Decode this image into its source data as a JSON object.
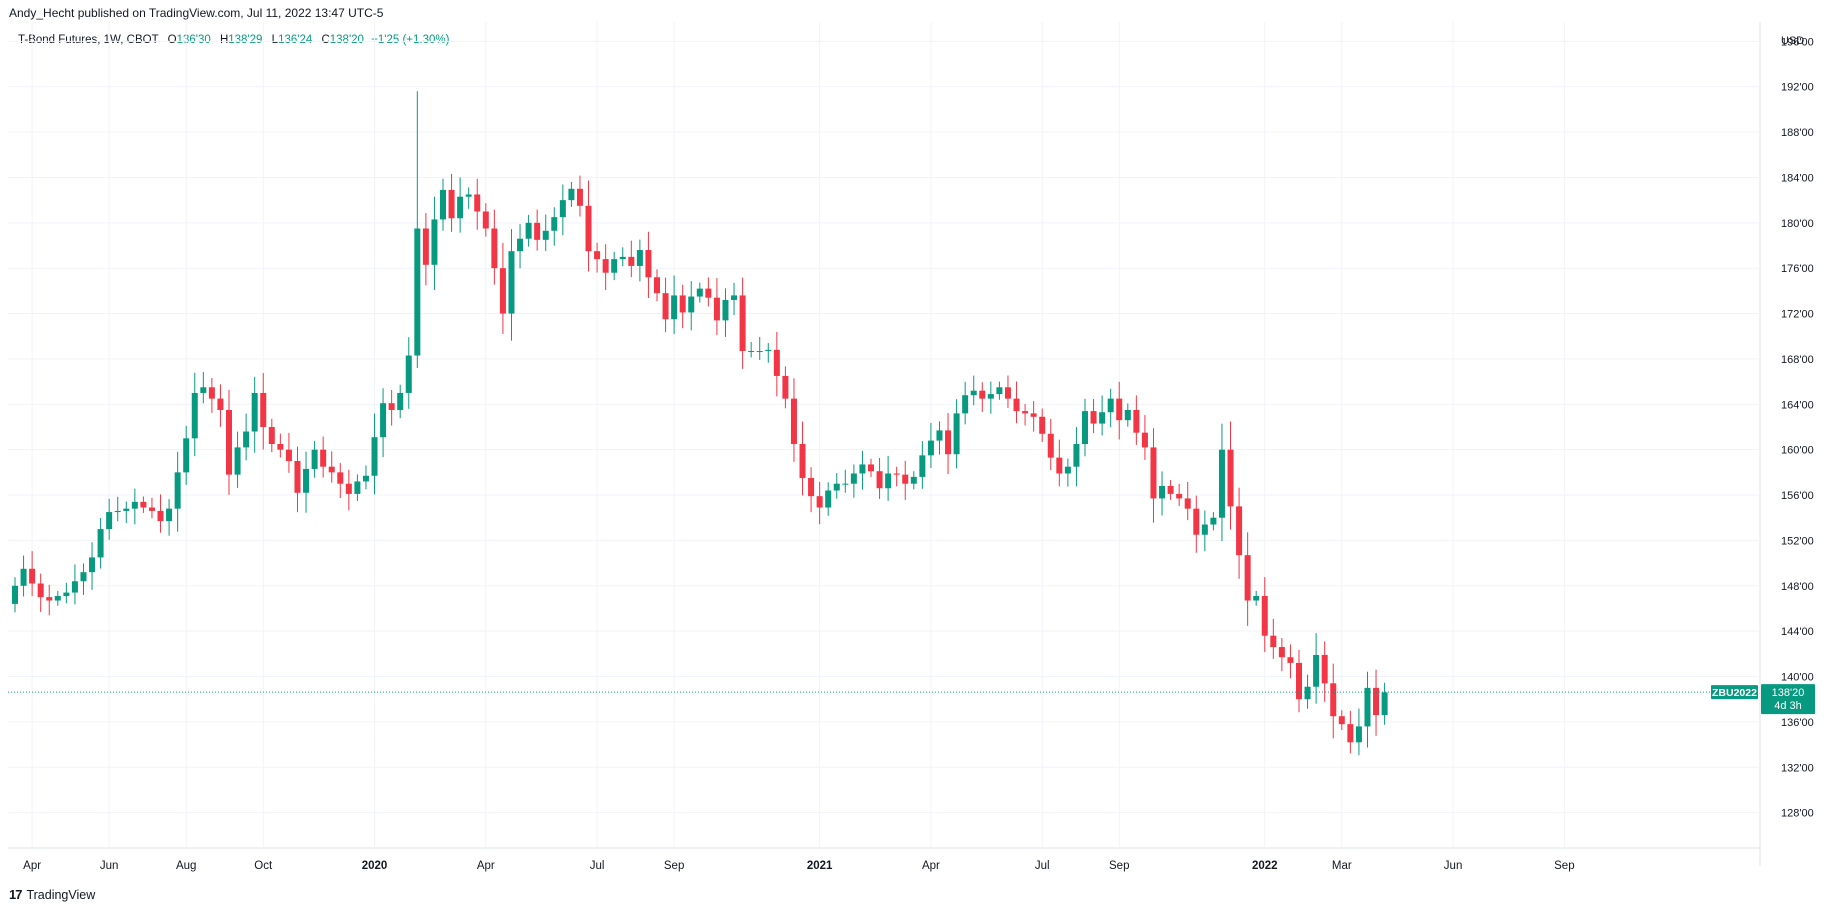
{
  "attribution": "Andy_Hecht published on TradingView.com, Jul 11, 2022 13:47 UTC-5",
  "legend": {
    "symbol": "T-Bond Futures, 1W, CBOT",
    "o_label": "O",
    "o_value": "136'30",
    "h_label": "H",
    "h_value": "138'29",
    "l_label": "L",
    "l_value": "136'24",
    "c_label": "C",
    "c_value": "138'20",
    "change": "+1'25 (+1.30%)"
  },
  "price_axis_currency": "USD",
  "last_price_tag": {
    "ticker": "ZBU2022",
    "price": "138'20",
    "countdown": "4d 3h"
  },
  "footer": {
    "logo_mark": "17",
    "logo_text": "TradingView"
  },
  "colors": {
    "up": "#089981",
    "down": "#f23645",
    "grid": "#f0f3fa",
    "axis_text": "#131722",
    "tag": "#089981"
  },
  "chart_data": {
    "type": "candlestick",
    "title": "T-Bond Futures, 1W, CBOT",
    "ylim": [
      124,
      197
    ],
    "y_ticks": [
      {
        "value": 196,
        "label": "196'00"
      },
      {
        "value": 192,
        "label": "192'00"
      },
      {
        "value": 188,
        "label": "188'00"
      },
      {
        "value": 184,
        "label": "184'00"
      },
      {
        "value": 180,
        "label": "180'00"
      },
      {
        "value": 176,
        "label": "176'00"
      },
      {
        "value": 172,
        "label": "172'00"
      },
      {
        "value": 168,
        "label": "168'00"
      },
      {
        "value": 164,
        "label": "164'00"
      },
      {
        "value": 160,
        "label": "160'00"
      },
      {
        "value": 156,
        "label": "156'00"
      },
      {
        "value": 152,
        "label": "152'00"
      },
      {
        "value": 148,
        "label": "148'00"
      },
      {
        "value": 144,
        "label": "144'00"
      },
      {
        "value": 140,
        "label": "140'00"
      },
      {
        "value": 136,
        "label": "136'00"
      },
      {
        "value": 132,
        "label": "132'00"
      },
      {
        "value": 128,
        "label": "128'00"
      }
    ],
    "x_ticks": [
      {
        "index": 2,
        "label": "Apr",
        "bold": false
      },
      {
        "index": 11,
        "label": "Jun",
        "bold": false
      },
      {
        "index": 20,
        "label": "Aug",
        "bold": false
      },
      {
        "index": 29,
        "label": "Oct",
        "bold": false
      },
      {
        "index": 42,
        "label": "2020",
        "bold": true
      },
      {
        "index": 55,
        "label": "Apr",
        "bold": false
      },
      {
        "index": 68,
        "label": "Jul",
        "bold": false
      },
      {
        "index": 77,
        "label": "Sep",
        "bold": false
      },
      {
        "index": 94,
        "label": "2021",
        "bold": true
      },
      {
        "index": 107,
        "label": "Apr",
        "bold": false
      },
      {
        "index": 120,
        "label": "Jul",
        "bold": false
      },
      {
        "index": 129,
        "label": "Sep",
        "bold": false
      },
      {
        "index": 146,
        "label": "2022",
        "bold": true
      },
      {
        "index": 155,
        "label": "Mar",
        "bold": false
      },
      {
        "index": 168,
        "label": "Jun",
        "bold": false
      },
      {
        "index": 181,
        "label": "Sep",
        "bold": false
      }
    ],
    "last_price": 138.625,
    "closes": [
      148,
      149.5,
      148.2,
      147,
      146.7,
      147.1,
      147.4,
      148.4,
      149.2,
      150.5,
      153,
      154.5,
      154.6,
      154.8,
      155.4,
      154.9,
      154.6,
      153.7,
      154.8,
      158,
      161,
      165,
      165.5,
      164.5,
      163.5,
      157.8,
      160.2,
      161.6,
      165,
      162,
      160.5,
      160,
      159,
      156.2,
      158.3,
      160,
      158.5,
      158,
      157,
      156.1,
      157.2,
      157.7,
      161.1,
      164.1,
      163.5,
      165,
      168.3,
      179.5,
      176.3,
      180.3,
      182.9,
      180.4,
      182.3,
      182.5,
      181,
      179.5,
      176,
      172,
      177.5,
      178.6,
      180,
      178.5,
      179.3,
      180.5,
      182,
      183,
      181.5,
      177.5,
      176.8,
      175.6,
      176.8,
      177,
      176.2,
      177.6,
      175.2,
      173.8,
      171.5,
      173.6,
      172.1,
      173.5,
      174.2,
      173.4,
      171.4,
      173.2,
      173.6,
      168.7,
      168.7,
      168.7,
      168.8,
      166.5,
      164.5,
      160.5,
      157.5,
      155.9,
      154.9,
      156.4,
      157,
      157,
      157.9,
      158.7,
      158.1,
      156.6,
      157.9,
      157.8,
      157,
      157.6,
      159.5,
      160.8,
      161.7,
      159.6,
      163.2,
      164.8,
      165.2,
      164.5,
      164.9,
      165.5,
      164.5,
      163.4,
      163.2,
      162.9,
      161.4,
      159.3,
      157.9,
      158.5,
      160.5,
      163.4,
      162.3,
      163.3,
      164.5,
      162.6,
      163.5,
      161.5,
      160.2,
      155.7,
      156.8,
      156.1,
      155.7,
      154.8,
      152.5,
      153.4,
      154,
      160,
      155,
      150.7,
      146.7,
      147.1,
      143.6,
      142.6,
      141.7,
      141.2,
      138,
      139.1,
      141.9,
      139.4,
      136.5,
      135.8,
      134.2,
      135.6,
      139,
      136.6,
      138.6
    ]
  }
}
